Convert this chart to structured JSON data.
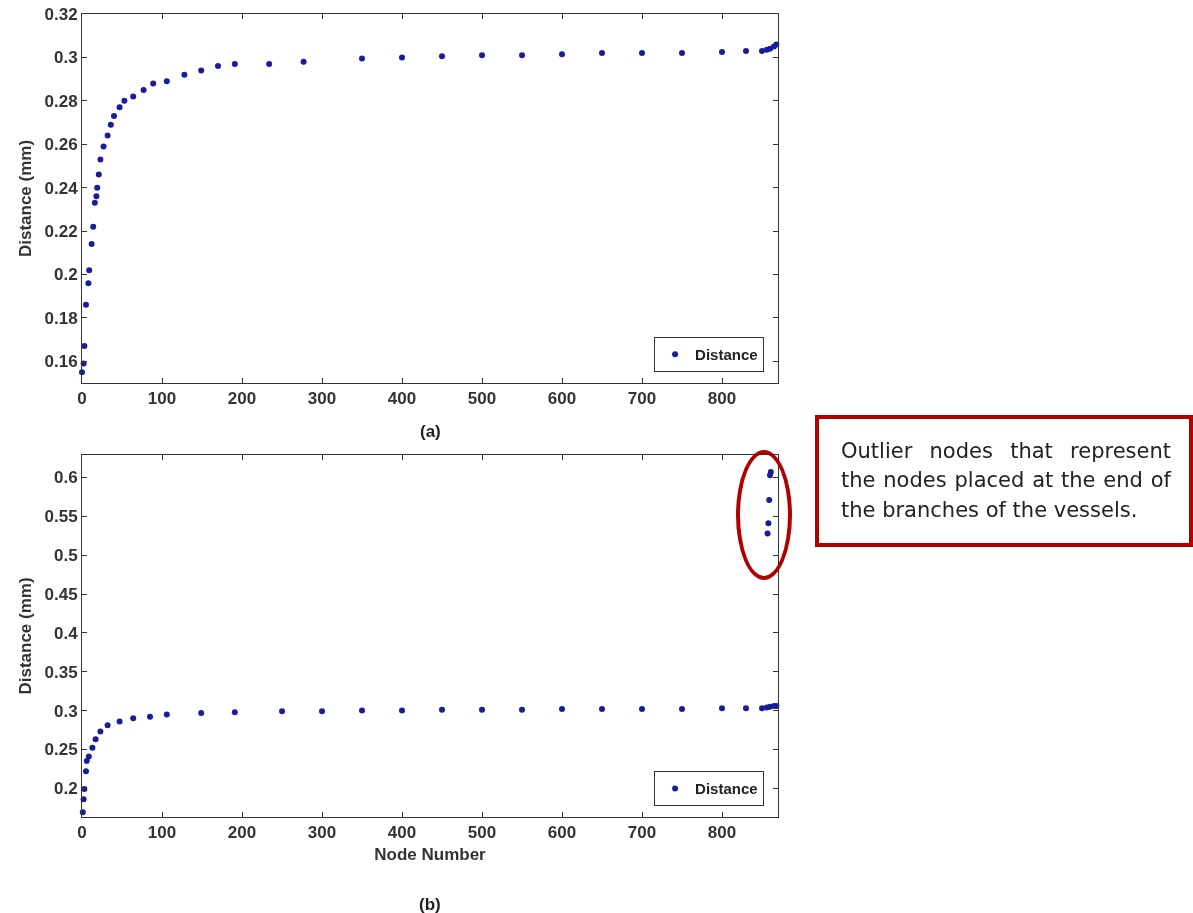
{
  "chart_data": [
    {
      "type": "scatter",
      "ylabel": "Distance (mm)",
      "xlim": [
        0,
        870
      ],
      "ylim": [
        0.15,
        0.32
      ],
      "xticks": [
        0,
        100,
        200,
        300,
        400,
        500,
        600,
        700,
        800
      ],
      "yticks": [
        0.16,
        0.18,
        0.2,
        0.22,
        0.24,
        0.26,
        0.28,
        0.3,
        0.32
      ],
      "grid": false,
      "legend": "bottom right",
      "marker": "circle",
      "annotations": [
        "(a)"
      ],
      "series": [
        {
          "name": "Distance",
          "color": "#1c1c9a",
          "x": [
            0,
            2,
            3,
            5,
            8,
            9,
            12,
            14,
            16,
            18,
            19,
            21,
            23,
            27,
            32,
            36,
            40,
            47,
            53,
            64,
            77,
            89,
            106,
            128,
            149,
            170,
            191,
            234,
            277,
            350,
            400,
            450,
            500,
            550,
            600,
            650,
            700,
            750,
            800,
            830,
            850,
            856,
            860,
            865,
            868
          ],
          "values": [
            0.155,
            0.159,
            0.167,
            0.186,
            0.196,
            0.202,
            0.214,
            0.222,
            0.233,
            0.236,
            0.24,
            0.246,
            0.253,
            0.259,
            0.264,
            0.269,
            0.273,
            0.277,
            0.28,
            0.282,
            0.285,
            0.288,
            0.289,
            0.292,
            0.294,
            0.296,
            0.297,
            0.297,
            0.298,
            0.2995,
            0.3,
            0.3005,
            0.301,
            0.301,
            0.3015,
            0.302,
            0.302,
            0.302,
            0.3025,
            0.303,
            0.303,
            0.3035,
            0.304,
            0.305,
            0.306
          ]
        }
      ]
    },
    {
      "type": "scatter",
      "xlabel": "Node Number",
      "ylabel": "Distance (mm)",
      "xlim": [
        0,
        870
      ],
      "ylim": [
        0.163,
        0.629
      ],
      "xticks": [
        0,
        100,
        200,
        300,
        400,
        500,
        600,
        700,
        800
      ],
      "yticks": [
        0.2,
        0.25,
        0.3,
        0.35,
        0.4,
        0.45,
        0.5,
        0.55,
        0.6
      ],
      "grid": false,
      "legend": "bottom right",
      "marker": "circle",
      "annotations": [
        "(b)",
        "Outlier nodes that represent the nodes placed at the end of the branches of the vessels."
      ],
      "series": [
        {
          "name": "Distance",
          "color": "#1c1c9a",
          "x": [
            1,
            2,
            3,
            5,
            6,
            8.5,
            13,
            17,
            23,
            32,
            47,
            64,
            85,
            106,
            149,
            191,
            250,
            300,
            350,
            400,
            450,
            500,
            550,
            600,
            650,
            700,
            750,
            800,
            830,
            850,
            856,
            860,
            865,
            868,
            857,
            858,
            859,
            860,
            861
          ],
          "values": [
            0.169,
            0.186,
            0.199,
            0.222,
            0.235,
            0.241,
            0.252,
            0.263,
            0.273,
            0.281,
            0.286,
            0.29,
            0.292,
            0.295,
            0.297,
            0.298,
            0.299,
            0.299,
            0.3,
            0.3,
            0.301,
            0.301,
            0.301,
            0.302,
            0.302,
            0.302,
            0.302,
            0.303,
            0.303,
            0.303,
            0.304,
            0.305,
            0.306,
            0.306,
            0.528,
            0.541,
            0.571,
            0.603,
            0.607
          ]
        }
      ]
    }
  ]
}
